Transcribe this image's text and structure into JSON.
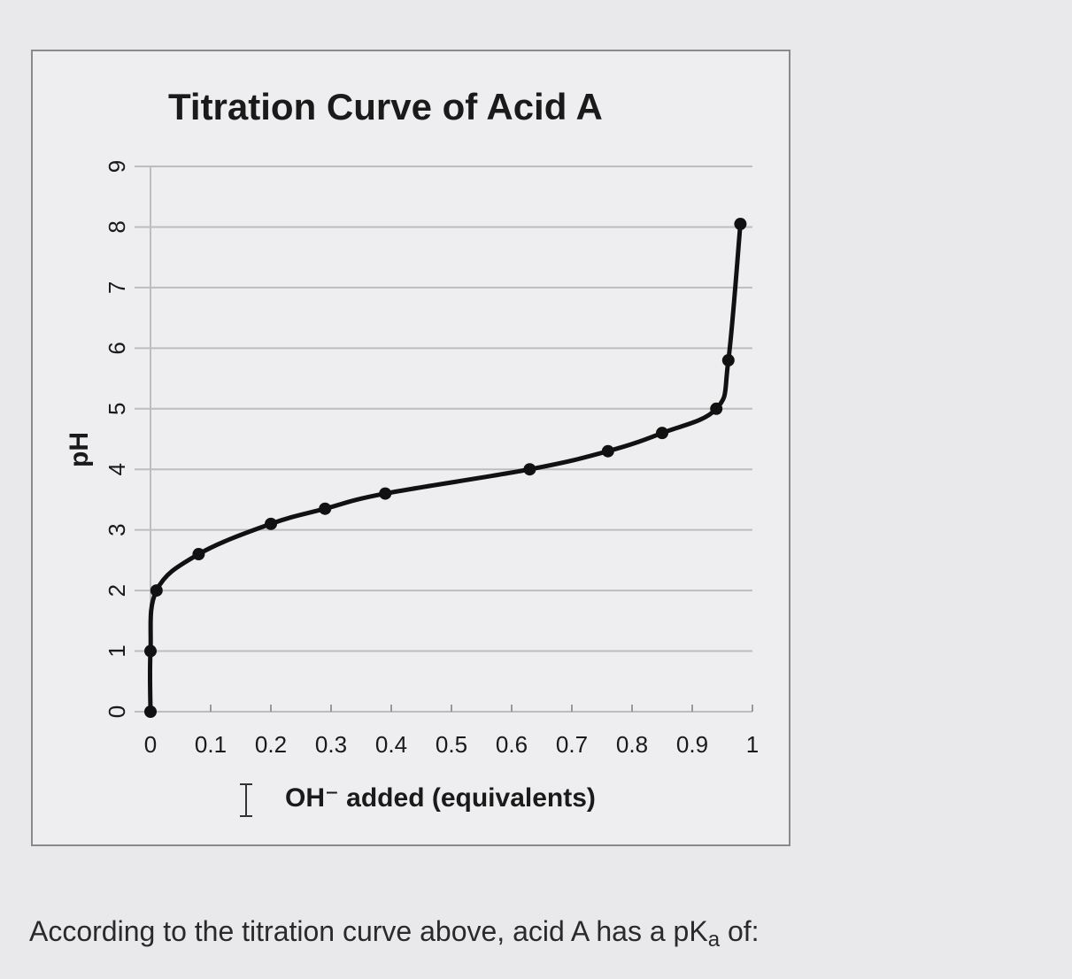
{
  "question": {
    "text_before": "According to the titration curve above, acid A has a pK",
    "subscript": "a",
    "text_after": " of:"
  },
  "chart_data": {
    "type": "line",
    "title": "Titration Curve of Acid A",
    "xlabel": "OH⁻ added (equivalents)",
    "ylabel": "pH",
    "xlim": [
      0,
      1
    ],
    "ylim": [
      0,
      9
    ],
    "xticks": [
      "0",
      "0.1",
      "0.2",
      "0.3",
      "0.4",
      "0.5",
      "0.6",
      "0.7",
      "0.8",
      "0.9",
      "1"
    ],
    "yticks": [
      "0",
      "1",
      "2",
      "3",
      "4",
      "5",
      "6",
      "7",
      "8",
      "9"
    ],
    "grid": true,
    "series": [
      {
        "x": [
          0,
          0,
          0.01,
          0.08,
          0.2,
          0.29,
          0.39,
          0.63,
          0.76,
          0.85,
          0.94,
          0.96,
          0.98
        ],
        "y": [
          0,
          1,
          2,
          2.6,
          3.1,
          3.35,
          3.6,
          4.0,
          4.3,
          4.6,
          5.0,
          5.8,
          8.05
        ]
      }
    ],
    "colors": {
      "line": "#111111",
      "grid": "#bdbdbd"
    }
  }
}
